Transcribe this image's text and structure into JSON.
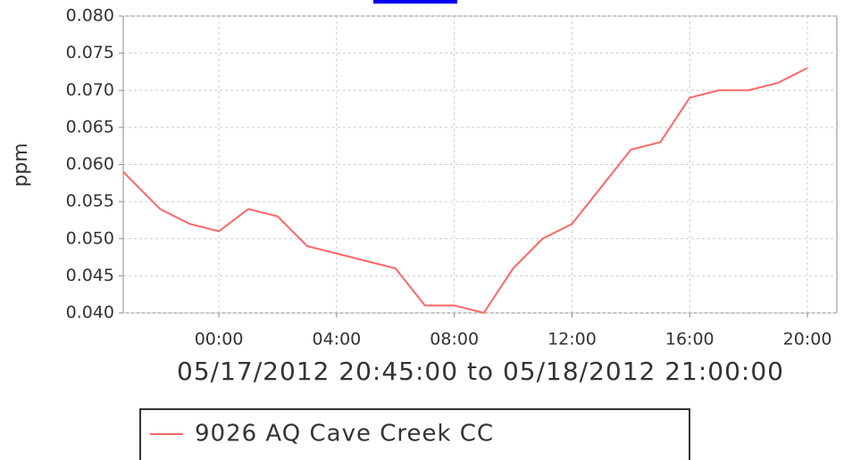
{
  "chart_data": {
    "type": "line",
    "y_label": "ppm",
    "subtitle": "05/17/2012 20:45:00 to 05/18/2012 21:00:00",
    "x": [
      "2012-05-17T20:45",
      "2012-05-17T21:00",
      "2012-05-17T22:00",
      "2012-05-17T23:00",
      "2012-05-18T00:00",
      "2012-05-18T01:00",
      "2012-05-18T02:00",
      "2012-05-18T03:00",
      "2012-05-18T04:00",
      "2012-05-18T05:00",
      "2012-05-18T06:00",
      "2012-05-18T07:00",
      "2012-05-18T08:00",
      "2012-05-18T09:00",
      "2012-05-18T10:00",
      "2012-05-18T11:00",
      "2012-05-18T12:00",
      "2012-05-18T13:00",
      "2012-05-18T14:00",
      "2012-05-18T15:00",
      "2012-05-18T16:00",
      "2012-05-18T17:00",
      "2012-05-18T18:00",
      "2012-05-18T19:00",
      "2012-05-18T20:00"
    ],
    "series": [
      {
        "name": "9026 AQ Cave Creek CC",
        "color": "#ff6666",
        "values": [
          0.059,
          0.058,
          0.054,
          0.052,
          0.051,
          0.054,
          0.053,
          0.049,
          0.048,
          0.047,
          0.046,
          0.041,
          0.041,
          0.04,
          0.046,
          0.05,
          0.052,
          0.057,
          0.062,
          0.063,
          0.069,
          0.07,
          0.07,
          0.071,
          0.073
        ]
      }
    ],
    "xlim": [
      "2012-05-17T20:45",
      "2012-05-18T21:00"
    ],
    "xticks": [
      {
        "value": "2012-05-18T00:00",
        "label": "00:00"
      },
      {
        "value": "2012-05-18T04:00",
        "label": "04:00"
      },
      {
        "value": "2012-05-18T08:00",
        "label": "08:00"
      },
      {
        "value": "2012-05-18T12:00",
        "label": "12:00"
      },
      {
        "value": "2012-05-18T16:00",
        "label": "16:00"
      },
      {
        "value": "2012-05-18T20:00",
        "label": "20:00"
      }
    ],
    "ylim": [
      0.04,
      0.08
    ],
    "yticks": [
      {
        "value": 0.04,
        "label": "0.040"
      },
      {
        "value": 0.045,
        "label": "0.045"
      },
      {
        "value": 0.05,
        "label": "0.050"
      },
      {
        "value": 0.055,
        "label": "0.055"
      },
      {
        "value": 0.06,
        "label": "0.060"
      },
      {
        "value": 0.065,
        "label": "0.065"
      },
      {
        "value": 0.07,
        "label": "0.070"
      },
      {
        "value": 0.075,
        "label": "0.075"
      },
      {
        "value": 0.08,
        "label": "0.080"
      }
    ],
    "grid": true
  }
}
